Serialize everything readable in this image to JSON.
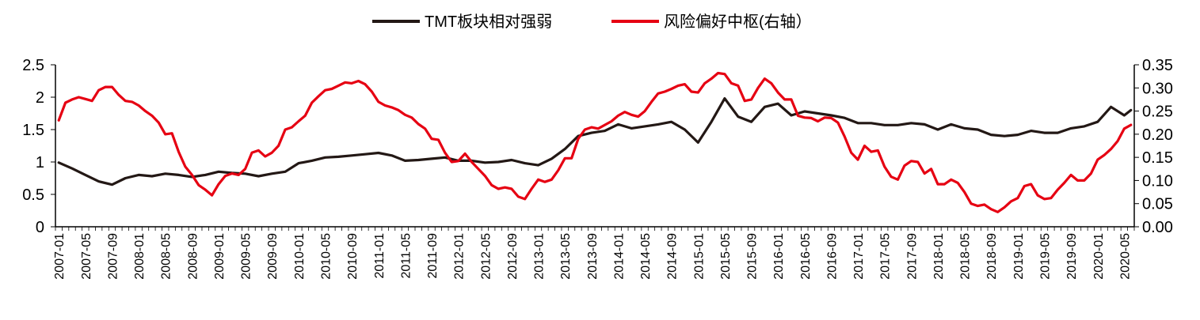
{
  "chart_data": {
    "type": "line",
    "title": "",
    "legend_position": "top-center",
    "series": [
      {
        "name": "TMT板块相对强弱",
        "axis": "left",
        "color": "#231815",
        "points": [
          [
            "2007-01",
            0.99
          ],
          [
            "2007-03",
            0.9
          ],
          [
            "2007-05",
            0.8
          ],
          [
            "2007-07",
            0.7
          ],
          [
            "2007-09",
            0.65
          ],
          [
            "2007-11",
            0.75
          ],
          [
            "2008-01",
            0.8
          ],
          [
            "2008-03",
            0.78
          ],
          [
            "2008-05",
            0.82
          ],
          [
            "2008-07",
            0.8
          ],
          [
            "2008-09",
            0.77
          ],
          [
            "2008-11",
            0.8
          ],
          [
            "2009-01",
            0.85
          ],
          [
            "2009-03",
            0.83
          ],
          [
            "2009-05",
            0.82
          ],
          [
            "2009-07",
            0.78
          ],
          [
            "2009-09",
            0.82
          ],
          [
            "2009-11",
            0.85
          ],
          [
            "2010-01",
            0.98
          ],
          [
            "2010-03",
            1.02
          ],
          [
            "2010-05",
            1.07
          ],
          [
            "2010-07",
            1.08
          ],
          [
            "2010-09",
            1.1
          ],
          [
            "2010-11",
            1.12
          ],
          [
            "2011-01",
            1.14
          ],
          [
            "2011-03",
            1.1
          ],
          [
            "2011-05",
            1.02
          ],
          [
            "2011-07",
            1.03
          ],
          [
            "2011-09",
            1.05
          ],
          [
            "2011-11",
            1.07
          ],
          [
            "2012-01",
            1.02
          ],
          [
            "2012-03",
            1.02
          ],
          [
            "2012-05",
            0.99
          ],
          [
            "2012-07",
            1.0
          ],
          [
            "2012-09",
            1.03
          ],
          [
            "2012-11",
            0.98
          ],
          [
            "2013-01",
            0.95
          ],
          [
            "2013-03",
            1.05
          ],
          [
            "2013-05",
            1.2
          ],
          [
            "2013-07",
            1.4
          ],
          [
            "2013-09",
            1.45
          ],
          [
            "2013-11",
            1.48
          ],
          [
            "2014-01",
            1.58
          ],
          [
            "2014-03",
            1.52
          ],
          [
            "2014-05",
            1.55
          ],
          [
            "2014-07",
            1.58
          ],
          [
            "2014-09",
            1.62
          ],
          [
            "2014-11",
            1.5
          ],
          [
            "2015-01",
            1.3
          ],
          [
            "2015-03",
            1.62
          ],
          [
            "2015-05",
            1.98
          ],
          [
            "2015-07",
            1.7
          ],
          [
            "2015-09",
            1.62
          ],
          [
            "2015-11",
            1.85
          ],
          [
            "2016-01",
            1.9
          ],
          [
            "2016-03",
            1.72
          ],
          [
            "2016-05",
            1.78
          ],
          [
            "2016-07",
            1.75
          ],
          [
            "2016-09",
            1.72
          ],
          [
            "2016-11",
            1.68
          ],
          [
            "2017-01",
            1.6
          ],
          [
            "2017-03",
            1.6
          ],
          [
            "2017-05",
            1.57
          ],
          [
            "2017-07",
            1.57
          ],
          [
            "2017-09",
            1.6
          ],
          [
            "2017-11",
            1.58
          ],
          [
            "2018-01",
            1.5
          ],
          [
            "2018-03",
            1.58
          ],
          [
            "2018-05",
            1.52
          ],
          [
            "2018-07",
            1.5
          ],
          [
            "2018-09",
            1.42
          ],
          [
            "2018-11",
            1.4
          ],
          [
            "2019-01",
            1.42
          ],
          [
            "2019-03",
            1.48
          ],
          [
            "2019-05",
            1.45
          ],
          [
            "2019-07",
            1.45
          ],
          [
            "2019-09",
            1.52
          ],
          [
            "2019-11",
            1.55
          ],
          [
            "2020-01",
            1.62
          ],
          [
            "2020-03",
            1.85
          ],
          [
            "2020-05",
            1.72
          ],
          [
            "2020-06",
            1.8
          ]
        ]
      },
      {
        "name": "风险偏好中枢(右轴）",
        "axis": "right",
        "color": "#e60012",
        "points": [
          [
            "2007-01",
            0.23
          ],
          [
            "2007-02",
            0.268
          ],
          [
            "2007-03",
            0.275
          ],
          [
            "2007-04",
            0.28
          ],
          [
            "2007-05",
            0.276
          ],
          [
            "2007-06",
            0.272
          ],
          [
            "2007-07",
            0.295
          ],
          [
            "2007-08",
            0.302
          ],
          [
            "2007-09",
            0.302
          ],
          [
            "2007-10",
            0.285
          ],
          [
            "2007-11",
            0.272
          ],
          [
            "2007-12",
            0.27
          ],
          [
            "2008-01",
            0.262
          ],
          [
            "2008-02",
            0.25
          ],
          [
            "2008-03",
            0.24
          ],
          [
            "2008-04",
            0.225
          ],
          [
            "2008-05",
            0.2
          ],
          [
            "2008-06",
            0.202
          ],
          [
            "2008-07",
            0.162
          ],
          [
            "2008-08",
            0.13
          ],
          [
            "2008-09",
            0.112
          ],
          [
            "2008-10",
            0.09
          ],
          [
            "2008-11",
            0.08
          ],
          [
            "2008-12",
            0.068
          ],
          [
            "2009-01",
            0.092
          ],
          [
            "2009-02",
            0.11
          ],
          [
            "2009-03",
            0.115
          ],
          [
            "2009-04",
            0.112
          ],
          [
            "2009-05",
            0.125
          ],
          [
            "2009-06",
            0.16
          ],
          [
            "2009-07",
            0.165
          ],
          [
            "2009-08",
            0.152
          ],
          [
            "2009-09",
            0.16
          ],
          [
            "2009-10",
            0.175
          ],
          [
            "2009-11",
            0.21
          ],
          [
            "2009-12",
            0.215
          ],
          [
            "2010-01",
            0.228
          ],
          [
            "2010-02",
            0.24
          ],
          [
            "2010-03",
            0.268
          ],
          [
            "2010-04",
            0.282
          ],
          [
            "2010-05",
            0.295
          ],
          [
            "2010-06",
            0.298
          ],
          [
            "2010-07",
            0.305
          ],
          [
            "2010-08",
            0.312
          ],
          [
            "2010-09",
            0.31
          ],
          [
            "2010-10",
            0.315
          ],
          [
            "2010-11",
            0.308
          ],
          [
            "2010-12",
            0.292
          ],
          [
            "2011-01",
            0.27
          ],
          [
            "2011-02",
            0.262
          ],
          [
            "2011-03",
            0.258
          ],
          [
            "2011-04",
            0.252
          ],
          [
            "2011-05",
            0.242
          ],
          [
            "2011-06",
            0.236
          ],
          [
            "2011-07",
            0.222
          ],
          [
            "2011-08",
            0.212
          ],
          [
            "2011-09",
            0.19
          ],
          [
            "2011-10",
            0.188
          ],
          [
            "2011-11",
            0.16
          ],
          [
            "2011-12",
            0.14
          ],
          [
            "2012-01",
            0.142
          ],
          [
            "2012-02",
            0.158
          ],
          [
            "2012-03",
            0.14
          ],
          [
            "2012-04",
            0.125
          ],
          [
            "2012-05",
            0.11
          ],
          [
            "2012-06",
            0.09
          ],
          [
            "2012-07",
            0.082
          ],
          [
            "2012-08",
            0.085
          ],
          [
            "2012-09",
            0.082
          ],
          [
            "2012-10",
            0.065
          ],
          [
            "2012-11",
            0.06
          ],
          [
            "2012-12",
            0.082
          ],
          [
            "2013-01",
            0.102
          ],
          [
            "2013-02",
            0.097
          ],
          [
            "2013-03",
            0.102
          ],
          [
            "2013-04",
            0.122
          ],
          [
            "2013-05",
            0.148
          ],
          [
            "2013-06",
            0.148
          ],
          [
            "2013-07",
            0.19
          ],
          [
            "2013-08",
            0.21
          ],
          [
            "2013-09",
            0.215
          ],
          [
            "2013-10",
            0.212
          ],
          [
            "2013-11",
            0.22
          ],
          [
            "2013-12",
            0.228
          ],
          [
            "2014-01",
            0.24
          ],
          [
            "2014-02",
            0.248
          ],
          [
            "2014-03",
            0.242
          ],
          [
            "2014-04",
            0.238
          ],
          [
            "2014-05",
            0.25
          ],
          [
            "2014-06",
            0.27
          ],
          [
            "2014-07",
            0.288
          ],
          [
            "2014-08",
            0.292
          ],
          [
            "2014-09",
            0.298
          ],
          [
            "2014-10",
            0.305
          ],
          [
            "2014-11",
            0.308
          ],
          [
            "2014-12",
            0.292
          ],
          [
            "2015-01",
            0.29
          ],
          [
            "2015-02",
            0.31
          ],
          [
            "2015-03",
            0.32
          ],
          [
            "2015-04",
            0.332
          ],
          [
            "2015-05",
            0.33
          ],
          [
            "2015-06",
            0.31
          ],
          [
            "2015-07",
            0.305
          ],
          [
            "2015-08",
            0.272
          ],
          [
            "2015-09",
            0.275
          ],
          [
            "2015-10",
            0.3
          ],
          [
            "2015-11",
            0.32
          ],
          [
            "2015-12",
            0.31
          ],
          [
            "2016-01",
            0.29
          ],
          [
            "2016-02",
            0.275
          ],
          [
            "2016-03",
            0.275
          ],
          [
            "2016-04",
            0.24
          ],
          [
            "2016-05",
            0.236
          ],
          [
            "2016-06",
            0.235
          ],
          [
            "2016-07",
            0.228
          ],
          [
            "2016-08",
            0.236
          ],
          [
            "2016-09",
            0.235
          ],
          [
            "2016-10",
            0.225
          ],
          [
            "2016-11",
            0.195
          ],
          [
            "2016-12",
            0.16
          ],
          [
            "2017-01",
            0.145
          ],
          [
            "2017-02",
            0.175
          ],
          [
            "2017-03",
            0.162
          ],
          [
            "2017-04",
            0.165
          ],
          [
            "2017-05",
            0.13
          ],
          [
            "2017-06",
            0.108
          ],
          [
            "2017-07",
            0.102
          ],
          [
            "2017-08",
            0.132
          ],
          [
            "2017-09",
            0.142
          ],
          [
            "2017-10",
            0.14
          ],
          [
            "2017-11",
            0.115
          ],
          [
            "2017-12",
            0.125
          ],
          [
            "2018-01",
            0.092
          ],
          [
            "2018-02",
            0.092
          ],
          [
            "2018-03",
            0.102
          ],
          [
            "2018-04",
            0.095
          ],
          [
            "2018-05",
            0.075
          ],
          [
            "2018-06",
            0.05
          ],
          [
            "2018-07",
            0.045
          ],
          [
            "2018-08",
            0.048
          ],
          [
            "2018-09",
            0.038
          ],
          [
            "2018-10",
            0.032
          ],
          [
            "2018-11",
            0.042
          ],
          [
            "2018-12",
            0.055
          ],
          [
            "2019-01",
            0.062
          ],
          [
            "2019-02",
            0.088
          ],
          [
            "2019-03",
            0.092
          ],
          [
            "2019-04",
            0.068
          ],
          [
            "2019-05",
            0.06
          ],
          [
            "2019-06",
            0.062
          ],
          [
            "2019-07",
            0.08
          ],
          [
            "2019-08",
            0.095
          ],
          [
            "2019-09",
            0.112
          ],
          [
            "2019-10",
            0.1
          ],
          [
            "2019-11",
            0.1
          ],
          [
            "2019-12",
            0.115
          ],
          [
            "2020-01",
            0.145
          ],
          [
            "2020-02",
            0.155
          ],
          [
            "2020-03",
            0.168
          ],
          [
            "2020-04",
            0.185
          ],
          [
            "2020-05",
            0.212
          ],
          [
            "2020-06",
            0.22
          ]
        ]
      }
    ],
    "x_start": "2007-01",
    "x_end": "2020-06",
    "x_ticks": [
      "2007-01",
      "2007-05",
      "2007-09",
      "2008-01",
      "2008-05",
      "2008-09",
      "2009-01",
      "2009-05",
      "2009-09",
      "2010-01",
      "2010-05",
      "2010-09",
      "2011-01",
      "2011-05",
      "2011-09",
      "2012-01",
      "2012-05",
      "2012-09",
      "2013-01",
      "2013-05",
      "2013-09",
      "2014-01",
      "2014-05",
      "2014-09",
      "2015-01",
      "2015-05",
      "2015-09",
      "2016-01",
      "2016-05",
      "2016-09",
      "2017-01",
      "2017-05",
      "2017-09",
      "2018-01",
      "2018-05",
      "2018-09",
      "2019-01",
      "2019-05",
      "2019-09",
      "2020-01",
      "2020-05"
    ],
    "y_left": {
      "min": 0,
      "max": 2.5,
      "ticks": [
        "0",
        "0.5",
        "1",
        "1.5",
        "2",
        "2.5"
      ]
    },
    "y_right": {
      "min": 0,
      "max": 0.35,
      "ticks": [
        "0.00",
        "0.05",
        "0.10",
        "0.15",
        "0.20",
        "0.25",
        "0.30",
        "0.35"
      ]
    },
    "grid": false
  }
}
